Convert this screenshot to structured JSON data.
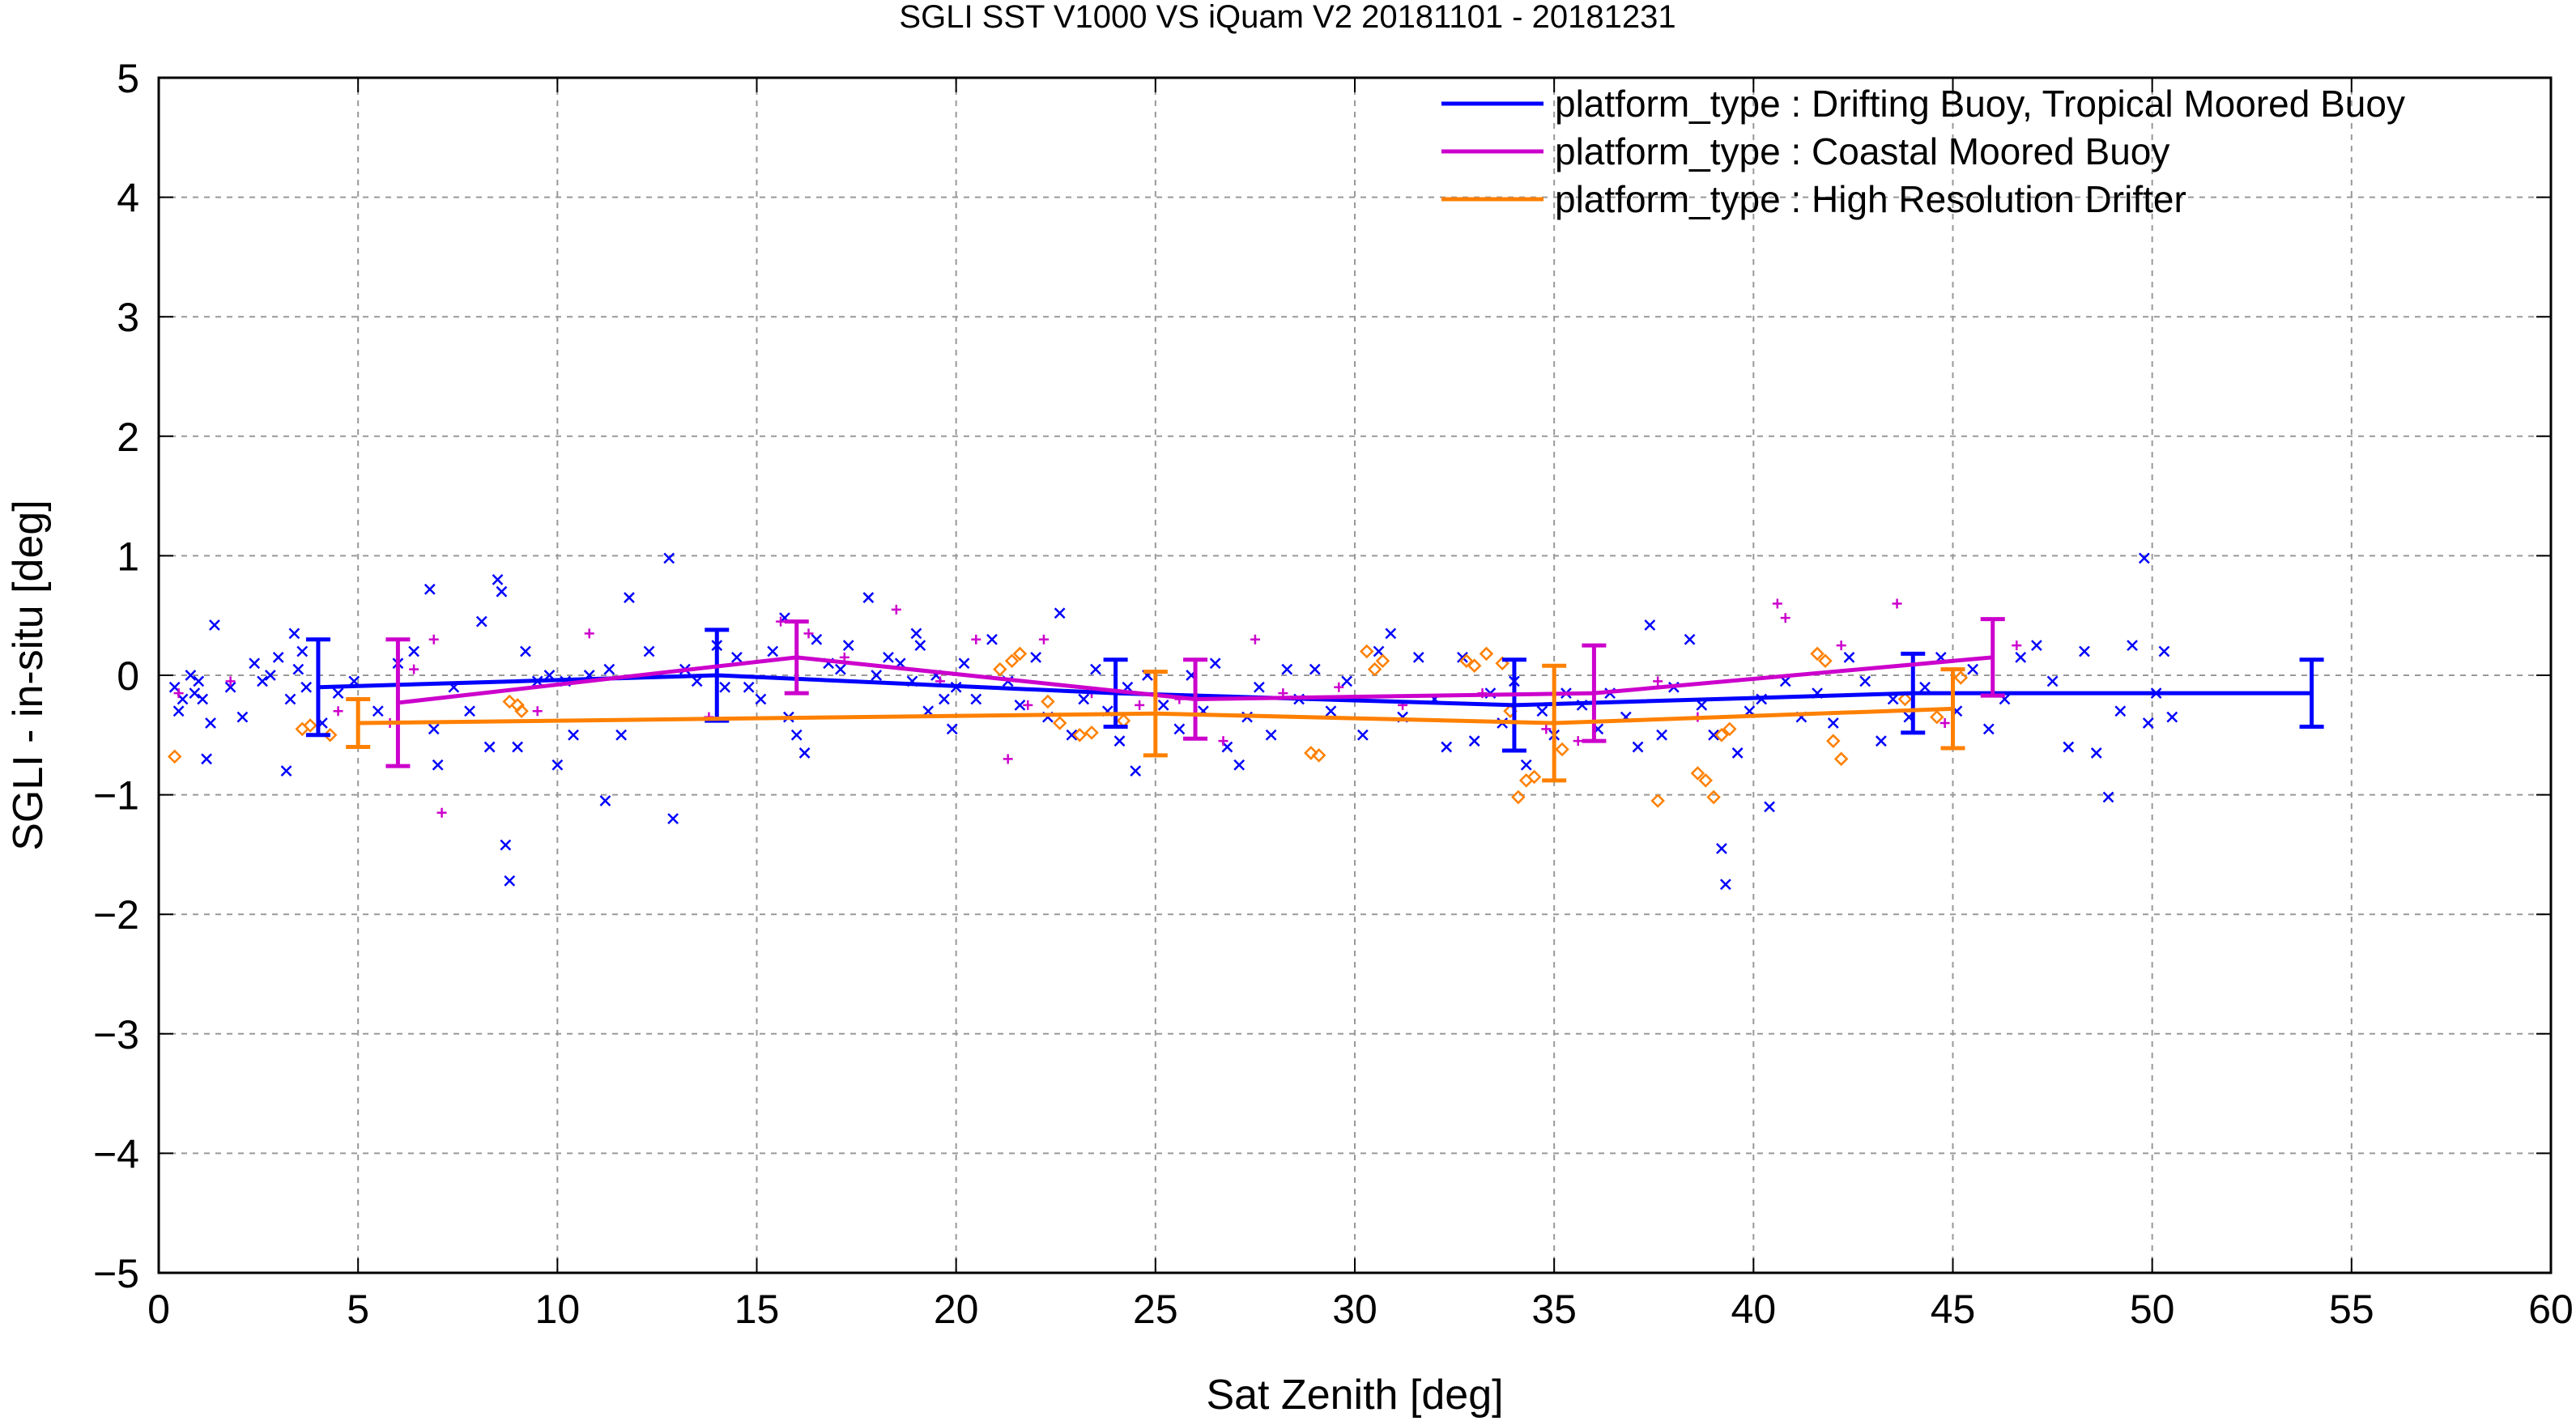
{
  "chart_data": {
    "type": "scatter",
    "title": "SGLI SST V1000 VS iQuam V2 20181101 - 20181231",
    "xlabel": "Sat Zenith [deg]",
    "ylabel": "SGLI - in-situ [deg]",
    "xlim": [
      0,
      60
    ],
    "ylim": [
      -5,
      5
    ],
    "x_ticks": [
      "0",
      "5",
      "10",
      "15",
      "20",
      "25",
      "30",
      "35",
      "40",
      "45",
      "50",
      "55",
      "60"
    ],
    "y_ticks": [
      "−5",
      "−4",
      "−3",
      "−2",
      "−1",
      "0",
      "1",
      "2",
      "3",
      "4",
      "5"
    ],
    "grid": true,
    "legend_position": "top-right",
    "series": [
      {
        "name": "platform_type : Drifting Buoy, Tropical Moored Buoy",
        "color": "#0000ff",
        "marker": "x",
        "mean_line": {
          "x": [
            4,
            14,
            24,
            34,
            44,
            54
          ],
          "y": [
            -0.1,
            0.0,
            -0.15,
            -0.25,
            -0.15,
            -0.15
          ],
          "err": [
            0.4,
            0.38,
            0.28,
            0.38,
            0.33,
            0.28
          ]
        },
        "points": [
          [
            0.4,
            -0.1
          ],
          [
            0.5,
            -0.3
          ],
          [
            0.6,
            -0.2
          ],
          [
            0.8,
            0.0
          ],
          [
            0.9,
            -0.15
          ],
          [
            1.0,
            -0.05
          ],
          [
            1.1,
            -0.2
          ],
          [
            1.2,
            -0.7
          ],
          [
            1.3,
            -0.4
          ],
          [
            1.4,
            0.42
          ],
          [
            1.8,
            -0.1
          ],
          [
            2.1,
            -0.35
          ],
          [
            2.4,
            0.1
          ],
          [
            2.6,
            -0.05
          ],
          [
            2.8,
            0.0
          ],
          [
            3.0,
            0.15
          ],
          [
            3.2,
            -0.8
          ],
          [
            3.3,
            -0.2
          ],
          [
            3.4,
            0.35
          ],
          [
            3.5,
            0.05
          ],
          [
            3.6,
            0.2
          ],
          [
            3.7,
            -0.1
          ],
          [
            4.1,
            -0.4
          ],
          [
            4.5,
            -0.15
          ],
          [
            4.9,
            -0.05
          ],
          [
            5.5,
            -0.3
          ],
          [
            6.0,
            0.1
          ],
          [
            6.4,
            0.2
          ],
          [
            6.8,
            0.72
          ],
          [
            6.9,
            -0.45
          ],
          [
            7.0,
            -0.75
          ],
          [
            7.4,
            -0.1
          ],
          [
            7.8,
            -0.3
          ],
          [
            8.1,
            0.45
          ],
          [
            8.3,
            -0.6
          ],
          [
            8.5,
            0.8
          ],
          [
            8.6,
            0.7
          ],
          [
            8.7,
            -1.42
          ],
          [
            8.8,
            -1.72
          ],
          [
            9.0,
            -0.6
          ],
          [
            9.2,
            0.2
          ],
          [
            9.5,
            -0.05
          ],
          [
            9.8,
            0.0
          ],
          [
            10.0,
            -0.75
          ],
          [
            10.2,
            -0.05
          ],
          [
            10.4,
            -0.5
          ],
          [
            10.8,
            0.0
          ],
          [
            11.2,
            -1.05
          ],
          [
            11.3,
            0.05
          ],
          [
            11.6,
            -0.5
          ],
          [
            11.8,
            0.65
          ],
          [
            12.3,
            0.2
          ],
          [
            12.8,
            0.98
          ],
          [
            12.9,
            -1.2
          ],
          [
            13.2,
            0.05
          ],
          [
            13.5,
            -0.05
          ],
          [
            14.0,
            0.25
          ],
          [
            14.2,
            -0.1
          ],
          [
            14.5,
            0.15
          ],
          [
            14.8,
            -0.1
          ],
          [
            15.1,
            -0.2
          ],
          [
            15.4,
            0.2
          ],
          [
            15.7,
            0.48
          ],
          [
            15.8,
            -0.35
          ],
          [
            16.0,
            -0.5
          ],
          [
            16.2,
            -0.65
          ],
          [
            16.5,
            0.3
          ],
          [
            16.8,
            0.1
          ],
          [
            17.1,
            0.05
          ],
          [
            17.3,
            0.25
          ],
          [
            17.8,
            0.65
          ],
          [
            18.0,
            0.0
          ],
          [
            18.3,
            0.15
          ],
          [
            18.6,
            0.1
          ],
          [
            18.9,
            -0.05
          ],
          [
            19.0,
            0.35
          ],
          [
            19.1,
            0.25
          ],
          [
            19.3,
            -0.3
          ],
          [
            19.5,
            0.0
          ],
          [
            19.7,
            -0.2
          ],
          [
            19.9,
            -0.45
          ],
          [
            20.0,
            -0.1
          ],
          [
            20.2,
            0.1
          ],
          [
            20.5,
            -0.2
          ],
          [
            20.9,
            0.3
          ],
          [
            21.3,
            -0.05
          ],
          [
            21.6,
            -0.25
          ],
          [
            22.0,
            0.15
          ],
          [
            22.3,
            -0.35
          ],
          [
            22.6,
            0.52
          ],
          [
            22.9,
            -0.5
          ],
          [
            23.2,
            -0.2
          ],
          [
            23.5,
            0.05
          ],
          [
            23.8,
            -0.3
          ],
          [
            24.1,
            -0.55
          ],
          [
            24.3,
            -0.1
          ],
          [
            24.5,
            -0.8
          ],
          [
            24.8,
            0.0
          ],
          [
            25.2,
            -0.25
          ],
          [
            25.6,
            -0.45
          ],
          [
            25.9,
            0.0
          ],
          [
            26.2,
            -0.3
          ],
          [
            26.5,
            0.1
          ],
          [
            26.8,
            -0.6
          ],
          [
            27.1,
            -0.75
          ],
          [
            27.3,
            -0.35
          ],
          [
            27.6,
            -0.1
          ],
          [
            27.9,
            -0.5
          ],
          [
            28.3,
            0.05
          ],
          [
            28.6,
            -0.2
          ],
          [
            29.0,
            0.05
          ],
          [
            29.4,
            -0.3
          ],
          [
            29.8,
            -0.05
          ],
          [
            30.2,
            -0.5
          ],
          [
            30.6,
            0.2
          ],
          [
            30.9,
            0.35
          ],
          [
            31.2,
            -0.35
          ],
          [
            31.6,
            0.15
          ],
          [
            32.0,
            -0.2
          ],
          [
            32.3,
            -0.6
          ],
          [
            32.7,
            0.15
          ],
          [
            33.0,
            -0.55
          ],
          [
            33.4,
            -0.15
          ],
          [
            33.7,
            -0.4
          ],
          [
            34.0,
            -0.05
          ],
          [
            34.3,
            -0.75
          ],
          [
            34.7,
            -0.3
          ],
          [
            35.0,
            -0.5
          ],
          [
            35.3,
            -0.15
          ],
          [
            35.7,
            -0.25
          ],
          [
            36.1,
            -0.45
          ],
          [
            36.4,
            -0.15
          ],
          [
            36.8,
            -0.35
          ],
          [
            37.1,
            -0.6
          ],
          [
            37.4,
            0.42
          ],
          [
            37.7,
            -0.5
          ],
          [
            38.0,
            -0.1
          ],
          [
            38.4,
            0.3
          ],
          [
            38.7,
            -0.25
          ],
          [
            39.0,
            -0.5
          ],
          [
            39.2,
            -1.45
          ],
          [
            39.3,
            -1.75
          ],
          [
            39.6,
            -0.65
          ],
          [
            39.9,
            -0.3
          ],
          [
            40.2,
            -0.2
          ],
          [
            40.4,
            -1.1
          ],
          [
            40.8,
            -0.05
          ],
          [
            41.2,
            -0.35
          ],
          [
            41.6,
            -0.15
          ],
          [
            42.0,
            -0.4
          ],
          [
            42.4,
            0.15
          ],
          [
            42.8,
            -0.05
          ],
          [
            43.2,
            -0.55
          ],
          [
            43.5,
            -0.2
          ],
          [
            43.9,
            -0.35
          ],
          [
            44.3,
            -0.1
          ],
          [
            44.7,
            0.15
          ],
          [
            45.1,
            -0.3
          ],
          [
            45.5,
            0.05
          ],
          [
            45.9,
            -0.45
          ],
          [
            46.3,
            -0.2
          ],
          [
            46.7,
            0.15
          ],
          [
            47.1,
            0.25
          ],
          [
            47.5,
            -0.05
          ],
          [
            47.9,
            -0.6
          ],
          [
            48.3,
            0.2
          ],
          [
            48.6,
            -0.65
          ],
          [
            48.9,
            -1.02
          ],
          [
            49.2,
            -0.3
          ],
          [
            49.5,
            0.25
          ],
          [
            49.8,
            0.98
          ],
          [
            49.9,
            -0.4
          ],
          [
            50.1,
            -0.15
          ],
          [
            50.3,
            0.2
          ],
          [
            50.5,
            -0.35
          ]
        ]
      },
      {
        "name": "platform_type : Coastal Moored Buoy",
        "color": "#cc00cc",
        "marker": "+",
        "mean_line": {
          "x": [
            6,
            16,
            26,
            36,
            46
          ],
          "y": [
            -0.23,
            0.15,
            -0.2,
            -0.15,
            0.15
          ],
          "err": [
            0.53,
            0.3,
            0.33,
            0.4,
            0.32
          ]
        },
        "points": [
          [
            0.5,
            -0.15
          ],
          [
            1.8,
            -0.05
          ],
          [
            4.5,
            -0.3
          ],
          [
            5.8,
            -0.4
          ],
          [
            6.4,
            0.05
          ],
          [
            6.9,
            0.3
          ],
          [
            7.1,
            -1.15
          ],
          [
            9.5,
            -0.3
          ],
          [
            10.8,
            0.35
          ],
          [
            13.8,
            -0.35
          ],
          [
            15.6,
            0.45
          ],
          [
            16.3,
            0.35
          ],
          [
            17.2,
            0.15
          ],
          [
            18.5,
            0.55
          ],
          [
            19.6,
            -0.05
          ],
          [
            20.5,
            0.3
          ],
          [
            21.3,
            -0.7
          ],
          [
            21.8,
            -0.25
          ],
          [
            22.2,
            0.3
          ],
          [
            23.4,
            -0.15
          ],
          [
            24.6,
            -0.25
          ],
          [
            25.6,
            -0.2
          ],
          [
            26.7,
            -0.55
          ],
          [
            27.5,
            0.3
          ],
          [
            28.2,
            -0.15
          ],
          [
            29.6,
            -0.1
          ],
          [
            31.2,
            -0.25
          ],
          [
            33.2,
            -0.15
          ],
          [
            34.8,
            -0.45
          ],
          [
            35.6,
            -0.55
          ],
          [
            37.6,
            -0.05
          ],
          [
            38.6,
            -0.35
          ],
          [
            40.6,
            0.6
          ],
          [
            40.8,
            0.48
          ],
          [
            42.2,
            0.25
          ],
          [
            43.6,
            0.6
          ],
          [
            44.8,
            -0.4
          ],
          [
            46.6,
            0.25
          ]
        ]
      },
      {
        "name": "platform_type : High Resolution Drifter",
        "color": "#ff8000",
        "marker": "diamond",
        "mean_line": {
          "x": [
            5,
            25,
            35,
            45
          ],
          "y": [
            -0.4,
            -0.32,
            -0.4,
            -0.28
          ],
          "err": [
            0.2,
            0.35,
            0.48,
            0.33
          ]
        },
        "points": [
          [
            0.4,
            -0.68
          ],
          [
            3.6,
            -0.45
          ],
          [
            3.8,
            -0.42
          ],
          [
            4.3,
            -0.5
          ],
          [
            8.8,
            -0.22
          ],
          [
            9.0,
            -0.25
          ],
          [
            9.1,
            -0.3
          ],
          [
            21.1,
            0.05
          ],
          [
            21.4,
            0.12
          ],
          [
            21.6,
            0.18
          ],
          [
            22.3,
            -0.22
          ],
          [
            22.6,
            -0.4
          ],
          [
            23.1,
            -0.5
          ],
          [
            23.4,
            -0.48
          ],
          [
            24.2,
            -0.38
          ],
          [
            28.9,
            -0.65
          ],
          [
            29.1,
            -0.67
          ],
          [
            30.3,
            0.2
          ],
          [
            30.5,
            0.05
          ],
          [
            30.7,
            0.12
          ],
          [
            32.8,
            0.12
          ],
          [
            33.0,
            0.08
          ],
          [
            33.3,
            0.18
          ],
          [
            33.7,
            0.1
          ],
          [
            33.9,
            -0.3
          ],
          [
            34.1,
            -1.02
          ],
          [
            34.3,
            -0.88
          ],
          [
            34.5,
            -0.85
          ],
          [
            35.2,
            -0.62
          ],
          [
            37.6,
            -1.05
          ],
          [
            38.6,
            -0.82
          ],
          [
            38.8,
            -0.88
          ],
          [
            39.0,
            -1.02
          ],
          [
            39.2,
            -0.5
          ],
          [
            39.4,
            -0.45
          ],
          [
            41.6,
            0.18
          ],
          [
            41.8,
            0.12
          ],
          [
            42.0,
            -0.55
          ],
          [
            42.2,
            -0.7
          ],
          [
            43.8,
            -0.2
          ],
          [
            44.6,
            -0.35
          ],
          [
            45.2,
            -0.02
          ]
        ]
      }
    ]
  }
}
